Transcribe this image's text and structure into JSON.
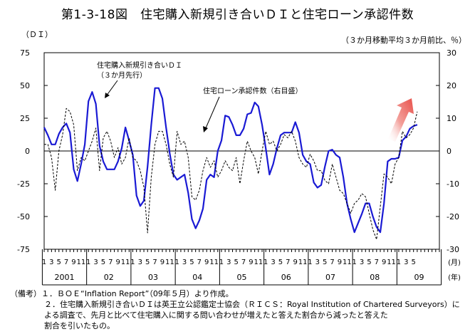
{
  "title": "第1-3-18図　住宅購入新規引き合いＤＩと住宅ローン承認件数",
  "chart_data": {
    "type": "line",
    "left_unit": "（ＤＩ）",
    "right_unit": "（３か月移動平均３か月前比、％）",
    "left_axis": {
      "min": -75,
      "max": 75,
      "ticks": [
        "75",
        "50",
        "25",
        "0",
        "-25",
        "-50",
        "-75"
      ]
    },
    "right_axis": {
      "min": -30,
      "max": 30,
      "ticks": [
        "30",
        "20",
        "10",
        "0",
        "-10",
        "-20",
        "-30"
      ]
    },
    "x_month_unit": "(月)",
    "x_year_unit": "(年)",
    "years": [
      "2001",
      "02",
      "03",
      "04",
      "05",
      "06",
      "07",
      "08",
      "09"
    ],
    "month_labels": [
      "1",
      "3",
      "5",
      "7",
      "9",
      "11"
    ],
    "series": [
      {
        "name": "住宅購入新規引き合いＤＩ",
        "name_sub": "（３か月先行）",
        "axis": "left",
        "color": "#1a1ad4",
        "x": [
          "2001-01",
          "2001-02",
          "2001-03",
          "2001-04",
          "2001-05",
          "2001-06",
          "2001-07",
          "2001-08",
          "2001-09",
          "2001-10",
          "2001-11",
          "2001-12",
          "2002-01",
          "2002-02",
          "2002-03",
          "2002-04",
          "2002-05",
          "2002-06",
          "2002-07",
          "2002-08",
          "2002-09",
          "2002-10",
          "2002-11",
          "2002-12",
          "2003-01",
          "2003-02",
          "2003-03",
          "2003-04",
          "2003-05",
          "2003-06",
          "2003-07",
          "2003-08",
          "2003-09",
          "2003-10",
          "2003-11",
          "2003-12",
          "2004-01",
          "2004-02",
          "2004-03",
          "2004-04",
          "2004-05",
          "2004-06",
          "2004-07",
          "2004-08",
          "2004-09",
          "2004-10",
          "2004-11",
          "2004-12",
          "2005-01",
          "2005-02",
          "2005-03",
          "2005-04",
          "2005-05",
          "2005-06",
          "2005-07",
          "2005-08",
          "2005-09",
          "2005-10",
          "2005-11",
          "2005-12",
          "2006-01",
          "2006-02",
          "2006-03",
          "2006-04",
          "2006-05",
          "2006-06",
          "2006-07",
          "2006-08",
          "2006-09",
          "2006-10",
          "2006-11",
          "2006-12",
          "2007-01",
          "2007-02",
          "2007-03",
          "2007-04",
          "2007-05",
          "2007-06",
          "2007-07",
          "2007-08",
          "2007-09",
          "2007-10",
          "2007-11",
          "2007-12",
          "2008-01",
          "2008-02",
          "2008-03",
          "2008-04",
          "2008-05",
          "2008-06",
          "2008-07",
          "2008-08",
          "2008-09",
          "2008-10",
          "2008-11",
          "2008-12",
          "2009-01",
          "2009-02",
          "2009-03",
          "2009-04",
          "2009-05",
          "2009-06"
        ],
        "values": [
          18,
          12,
          5,
          5,
          13,
          18,
          21,
          14,
          -14,
          -23,
          -10,
          5,
          38,
          45,
          36,
          4,
          -8,
          -14,
          -14,
          -14,
          -8,
          2,
          18,
          8,
          -3,
          -34,
          -42,
          -38,
          -12,
          20,
          48,
          48,
          40,
          18,
          -2,
          -18,
          -22,
          -20,
          -18,
          -32,
          -52,
          -59,
          -53,
          -44,
          -22,
          -18,
          -20,
          0,
          8,
          27,
          26,
          20,
          12,
          12,
          17,
          28,
          29,
          37,
          34,
          20,
          2,
          -18,
          -10,
          2,
          12,
          14,
          14,
          14,
          22,
          14,
          -3,
          -8,
          -10,
          -24,
          -28,
          -26,
          -12,
          0,
          1,
          -3,
          -5,
          -20,
          -40,
          -52,
          -62,
          -55,
          -48,
          -40,
          -40,
          -50,
          -58,
          -62,
          -40,
          -8,
          -6,
          -6,
          -5,
          8,
          11,
          17,
          19,
          20
        ]
      },
      {
        "name": "住宅ローン承認件数（右目盛）",
        "axis": "right",
        "color": "#000000",
        "x": [
          "2001-01",
          "2001-02",
          "2001-03",
          "2001-04",
          "2001-05",
          "2001-06",
          "2001-07",
          "2001-08",
          "2001-09",
          "2001-10",
          "2001-11",
          "2001-12",
          "2002-01",
          "2002-02",
          "2002-03",
          "2002-04",
          "2002-05",
          "2002-06",
          "2002-07",
          "2002-08",
          "2002-09",
          "2002-10",
          "2002-11",
          "2002-12",
          "2003-01",
          "2003-02",
          "2003-03",
          "2003-04",
          "2003-05",
          "2003-06",
          "2003-07",
          "2003-08",
          "2003-09",
          "2003-10",
          "2003-11",
          "2003-12",
          "2004-01",
          "2004-02",
          "2004-03",
          "2004-04",
          "2004-05",
          "2004-06",
          "2004-07",
          "2004-08",
          "2004-09",
          "2004-10",
          "2004-11",
          "2004-12",
          "2005-01",
          "2005-02",
          "2005-03",
          "2005-04",
          "2005-05",
          "2005-06",
          "2005-07",
          "2005-08",
          "2005-09",
          "2005-10",
          "2005-11",
          "2005-12",
          "2006-01",
          "2006-02",
          "2006-03",
          "2006-04",
          "2006-05",
          "2006-06",
          "2006-07",
          "2006-08",
          "2006-09",
          "2006-10",
          "2006-11",
          "2006-12",
          "2007-01",
          "2007-02",
          "2007-03",
          "2007-04",
          "2007-05",
          "2007-06",
          "2007-07",
          "2007-08",
          "2007-09",
          "2007-10",
          "2007-11",
          "2007-12",
          "2008-01",
          "2008-02",
          "2008-03",
          "2008-04",
          "2008-05",
          "2008-06",
          "2008-07",
          "2008-08",
          "2008-09",
          "2008-10",
          "2008-11",
          "2008-12",
          "2009-01",
          "2009-02",
          "2009-03",
          "2009-04",
          "2009-05",
          "2009-06"
        ],
        "values": [
          2,
          2,
          -2,
          -12,
          0,
          5,
          13,
          12,
          8,
          -6,
          -2,
          -3,
          0,
          3,
          7,
          -6,
          4,
          6,
          3,
          -2,
          1,
          -4,
          -2,
          4,
          -2,
          -3,
          -6,
          -11,
          -25,
          -8,
          2,
          6,
          6,
          2,
          -4,
          -8,
          6,
          2,
          3,
          -2,
          -14,
          -15,
          -12,
          -6,
          -2,
          -5,
          -3,
          -8,
          -6,
          -3,
          -5,
          -6,
          -2,
          -10,
          -3,
          3,
          0,
          -2,
          -7,
          0,
          6,
          2,
          3,
          0,
          2,
          5,
          4,
          6,
          3,
          -2,
          -4,
          -5,
          -1,
          -3,
          -6,
          -6,
          -9,
          -10,
          -4,
          -8,
          -12,
          -13,
          -16,
          -19,
          -16,
          -15,
          -13,
          -14,
          -19,
          -24,
          -27,
          -17,
          -7,
          -8,
          -10,
          -4,
          -2,
          6,
          4,
          5,
          7,
          12
        ]
      }
    ]
  },
  "notes": {
    "line1": "（備考）１．ＢＯＥ“Inflation Report”（09年５月）より作成。",
    "line2": "２．住宅購入新規引き合いＤＩは英王立公認鑑定士協会（ＲＩＣＳ：Royal Institution of Chartered Surveyors）に",
    "line3": "よる調査で、先月と比べて住宅購入に関する問い合わせが増えたと答えた割合から減ったと答えた",
    "line4": "割合を引いたもの。"
  },
  "colors": {
    "arrow": "#e8504a",
    "di_line": "#1a1ad4",
    "loan_line": "#000000"
  }
}
